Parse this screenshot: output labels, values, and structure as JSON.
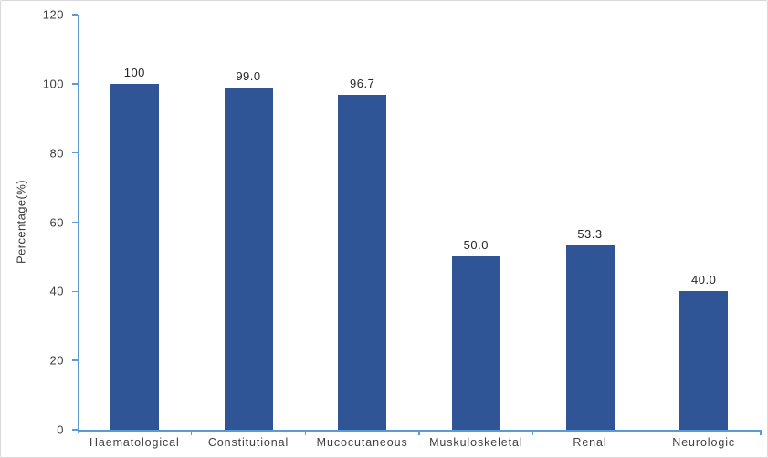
{
  "chart_data": {
    "type": "bar",
    "categories": [
      "Haematological",
      "Constitutional",
      "Mucocutaneous",
      "Muskuloskeletal",
      "Renal",
      "Neurologic"
    ],
    "values": [
      100,
      99.0,
      96.7,
      50.0,
      53.3,
      40.0
    ],
    "value_labels": [
      "100",
      "99.0",
      "96.7",
      "50.0",
      "53.3",
      "40.0"
    ],
    "title": "",
    "xlabel": "",
    "ylabel": "Percentage(%)",
    "ylim": [
      0,
      120
    ],
    "yticks": [
      0,
      20,
      40,
      60,
      80,
      100,
      120
    ],
    "grid": "off",
    "legend": "none",
    "colors": {
      "bar_fill": "#2F5597",
      "axis_line": "#5B9BD5",
      "tick_text": "#3F3F3F",
      "value_text": "#262626",
      "frame_border": "#D9D9D9",
      "background": "#FFFFFF"
    }
  }
}
